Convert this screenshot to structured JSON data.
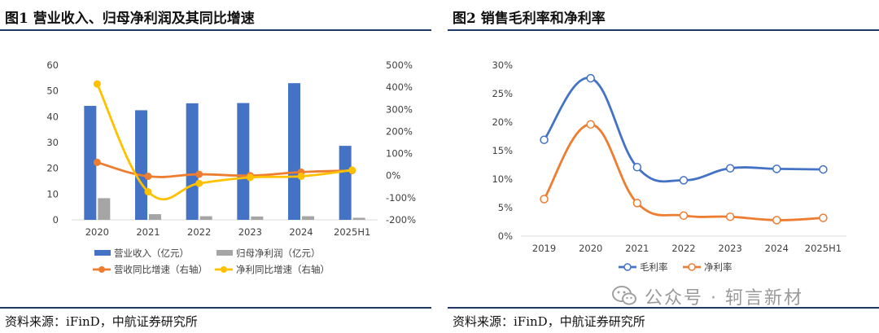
{
  "figure1": {
    "title": "图1  营业收入、归母净利润及其同比增速",
    "source": "资料来源：iFinD，中航证券研究所"
  },
  "figure2": {
    "title": "图2  销售毛利率和净利率",
    "source": "资料来源：iFinD，中航证券研究所"
  },
  "watermark": {
    "text": "公众号 · 轲言新材",
    "icon": "wechat-icon"
  },
  "colors": {
    "rule": "#1f3864",
    "bar_revenue": "#4472c4",
    "bar_profit": "#a5a5a5",
    "line_revenue_growth": "#ed7d31",
    "line_profit_growth": "#ffc000",
    "line_gross_margin": "#4472c4",
    "line_net_margin": "#ed7d31"
  },
  "chart_data": [
    {
      "type": "bar",
      "categories": [
        "2020",
        "2021",
        "2022",
        "2023",
        "2024",
        "2025H1"
      ],
      "y_left": {
        "ylim": [
          0,
          60
        ],
        "ticks": [
          "0",
          "10",
          "20",
          "30",
          "40",
          "50",
          "60"
        ]
      },
      "y_right": {
        "ylim": [
          -200,
          500
        ],
        "ticks": [
          "-200%",
          "-100%",
          "0%",
          "100%",
          "200%",
          "300%",
          "400%",
          "500%"
        ]
      },
      "series": [
        {
          "name": "营业收入（亿元）",
          "kind": "bar",
          "axis": "left",
          "values": [
            44.2,
            42.5,
            45.2,
            45.3,
            53.0,
            28.7
          ]
        },
        {
          "name": "归母净利润（亿元）",
          "kind": "bar",
          "axis": "left",
          "values": [
            8.4,
            2.2,
            1.4,
            1.3,
            1.4,
            0.8
          ]
        },
        {
          "name": "营收同比增速（右轴）",
          "kind": "line",
          "axis": "right",
          "values": [
            60,
            -3,
            6,
            0,
            16,
            23
          ]
        },
        {
          "name": "净利同比增速（右轴）",
          "kind": "line",
          "axis": "right",
          "values": [
            415,
            -73,
            -35,
            -8,
            -3,
            25
          ]
        }
      ],
      "legend": "bottom",
      "grid": false
    },
    {
      "type": "line",
      "categories": [
        "2019",
        "2020",
        "2021",
        "2022",
        "2023",
        "2024",
        "2025H1"
      ],
      "ylim": [
        0,
        30
      ],
      "yticks": [
        "0%",
        "5%",
        "10%",
        "15%",
        "20%",
        "25%",
        "30%"
      ],
      "series": [
        {
          "name": "毛利率",
          "values": [
            16.9,
            27.7,
            12.1,
            9.8,
            11.9,
            11.8,
            11.7
          ]
        },
        {
          "name": "净利率",
          "values": [
            6.5,
            19.6,
            5.8,
            3.6,
            3.4,
            2.8,
            3.2
          ]
        }
      ],
      "legend": "bottom",
      "grid": false
    }
  ]
}
